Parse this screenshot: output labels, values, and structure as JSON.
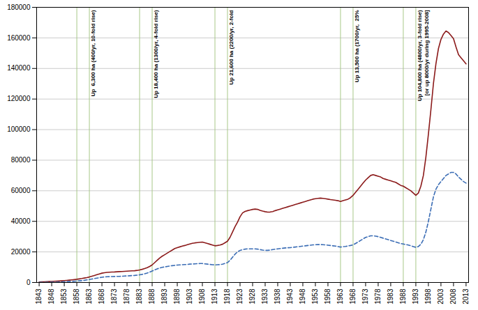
{
  "chart_data": {
    "type": "line",
    "x": [
      1843,
      1844,
      1845,
      1846,
      1847,
      1848,
      1849,
      1850,
      1851,
      1852,
      1853,
      1854,
      1855,
      1856,
      1857,
      1858,
      1859,
      1860,
      1861,
      1862,
      1863,
      1864,
      1865,
      1866,
      1867,
      1868,
      1869,
      1870,
      1871,
      1872,
      1873,
      1874,
      1875,
      1876,
      1877,
      1878,
      1879,
      1880,
      1881,
      1882,
      1883,
      1884,
      1885,
      1886,
      1887,
      1888,
      1889,
      1890,
      1891,
      1892,
      1893,
      1894,
      1895,
      1896,
      1897,
      1898,
      1899,
      1900,
      1901,
      1902,
      1903,
      1904,
      1905,
      1906,
      1907,
      1908,
      1909,
      1910,
      1911,
      1912,
      1913,
      1914,
      1915,
      1916,
      1917,
      1918,
      1919,
      1920,
      1921,
      1922,
      1923,
      1924,
      1925,
      1926,
      1927,
      1928,
      1929,
      1930,
      1931,
      1932,
      1933,
      1934,
      1935,
      1936,
      1937,
      1938,
      1939,
      1940,
      1941,
      1942,
      1943,
      1944,
      1945,
      1946,
      1947,
      1948,
      1949,
      1950,
      1951,
      1952,
      1953,
      1954,
      1955,
      1956,
      1957,
      1958,
      1959,
      1960,
      1961,
      1962,
      1963,
      1964,
      1965,
      1966,
      1967,
      1968,
      1969,
      1970,
      1971,
      1972,
      1973,
      1974,
      1975,
      1976,
      1977,
      1978,
      1979,
      1980,
      1981,
      1982,
      1983,
      1984,
      1985,
      1986,
      1987,
      1988,
      1989,
      1990,
      1991,
      1992,
      1993,
      1994,
      1995,
      1996,
      1997,
      1998,
      1999,
      2000,
      2001,
      2002,
      2003,
      2004,
      2005,
      2006,
      2007,
      2008,
      2009,
      2010,
      2011,
      2012,
      2013
    ],
    "series": [
      {
        "color": "#8B1A1A",
        "line_style": "solid",
        "values": [
          300,
          380,
          460,
          540,
          620,
          700,
          790,
          880,
          980,
          1100,
          1230,
          1380,
          1530,
          1700,
          1900,
          2100,
          2350,
          2600,
          2900,
          3200,
          3600,
          4100,
          4600,
          5100,
          5600,
          6100,
          6400,
          6600,
          6750,
          6850,
          6900,
          7000,
          7100,
          7200,
          7300,
          7400,
          7500,
          7600,
          7700,
          7900,
          8200,
          8600,
          9100,
          9700,
          10500,
          11500,
          13000,
          14500,
          16000,
          17200,
          18200,
          19200,
          20200,
          21200,
          22200,
          22800,
          23300,
          23800,
          24200,
          24700,
          25200,
          25600,
          25900,
          26100,
          26300,
          26400,
          26000,
          25500,
          25000,
          24500,
          24000,
          24200,
          24500,
          25000,
          26000,
          27000,
          29500,
          33000,
          36500,
          39500,
          43000,
          45500,
          46500,
          47000,
          47400,
          47800,
          48000,
          47800,
          47200,
          46700,
          46300,
          46000,
          46100,
          46400,
          47000,
          47500,
          48000,
          48500,
          49000,
          49500,
          50000,
          50500,
          51000,
          51500,
          52000,
          52500,
          53000,
          53500,
          54000,
          54500,
          54800,
          55000,
          55200,
          55000,
          54800,
          54500,
          54200,
          54000,
          53800,
          53500,
          53000,
          53500,
          54000,
          54500,
          55500,
          57000,
          59000,
          61000,
          63000,
          65000,
          67000,
          68500,
          70000,
          70500,
          70000,
          69500,
          69000,
          68000,
          67500,
          67000,
          66500,
          66000,
          65500,
          64500,
          63500,
          63000,
          62000,
          61000,
          60000,
          58500,
          57000,
          58500,
          63000,
          70000,
          82000,
          97000,
          113000,
          130000,
          143000,
          153000,
          159000,
          162500,
          164500,
          163500,
          161500,
          159500,
          154000,
          149000,
          147000,
          145000,
          143000
        ]
      },
      {
        "color": "#3B6DB5",
        "line_style": "dashed",
        "values": [
          80,
          100,
          120,
          140,
          160,
          185,
          215,
          255,
          305,
          365,
          435,
          515,
          610,
          715,
          825,
          940,
          1070,
          1220,
          1430,
          1680,
          1950,
          2250,
          2550,
          2850,
          3150,
          3450,
          3650,
          3750,
          3820,
          3870,
          3920,
          3970,
          4010,
          4100,
          4200,
          4300,
          4400,
          4500,
          4600,
          4800,
          5000,
          5300,
          5700,
          6200,
          6800,
          7500,
          8200,
          8900,
          9500,
          9900,
          10200,
          10500,
          10800,
          11000,
          11200,
          11400,
          11500,
          11600,
          11700,
          11800,
          12000,
          12100,
          12200,
          12300,
          12400,
          12400,
          12200,
          12000,
          11800,
          11600,
          11500,
          11600,
          11700,
          12000,
          12500,
          13000,
          14500,
          16500,
          18500,
          20000,
          21000,
          21500,
          21800,
          22000,
          22000,
          22000,
          22000,
          21800,
          21500,
          21200,
          21000,
          21000,
          21200,
          21500,
          21800,
          22000,
          22200,
          22400,
          22600,
          22700,
          22800,
          23000,
          23200,
          23400,
          23600,
          23800,
          24000,
          24200,
          24400,
          24600,
          24700,
          24800,
          24800,
          24700,
          24600,
          24400,
          24200,
          24000,
          23800,
          23500,
          23200,
          23400,
          23600,
          23900,
          24200,
          24600,
          25500,
          26500,
          27500,
          28500,
          29500,
          30000,
          30500,
          30500,
          30300,
          30000,
          29500,
          29000,
          28500,
          28000,
          27500,
          27000,
          26500,
          26000,
          25500,
          25200,
          24800,
          24500,
          24000,
          23500,
          23000,
          23500,
          25000,
          28000,
          33000,
          40000,
          48000,
          56000,
          61000,
          64000,
          66000,
          68000,
          70000,
          71000,
          72000,
          72000,
          71000,
          69000,
          67500,
          66000,
          65000
        ]
      }
    ],
    "xlim": [
      1842,
      2014
    ],
    "xticks": [
      1843,
      1848,
      1853,
      1858,
      1863,
      1868,
      1873,
      1878,
      1883,
      1888,
      1893,
      1898,
      1903,
      1908,
      1913,
      1918,
      1923,
      1928,
      1933,
      1938,
      1943,
      1948,
      1953,
      1958,
      1963,
      1968,
      1973,
      1978,
      1983,
      1988,
      1993,
      1998,
      2003,
      2008,
      2013
    ],
    "ylim": [
      0,
      180000
    ],
    "yticks": [
      0,
      20000,
      40000,
      60000,
      80000,
      100000,
      120000,
      140000,
      160000,
      180000
    ],
    "grid": "y",
    "vlines": {
      "x": [
        1858,
        1863,
        1883,
        1888,
        1913,
        1918,
        1963,
        1968,
        1988,
        1993
      ],
      "color": "#A8C888"
    },
    "annotations": [
      {
        "x": 1863,
        "text": "Up  6,300 ha (400/yr, 10-fold rise)"
      },
      {
        "x": 1888,
        "text": "Up 18,400 ha (1300/yr, 4-fold rise)"
      },
      {
        "x": 1918,
        "text": "Up 21,600 ha (2200/yr, 2-fold"
      },
      {
        "x": 1968,
        "text": "Up 13,500 ha (1700/yr,  25%"
      },
      {
        "x": 1993,
        "text": "Up 104,800 ha (4800/yr, 3-fold rise)"
      },
      {
        "x": 1996,
        "text": "[or up 8000/yr during 1995-2008]"
      }
    ]
  }
}
